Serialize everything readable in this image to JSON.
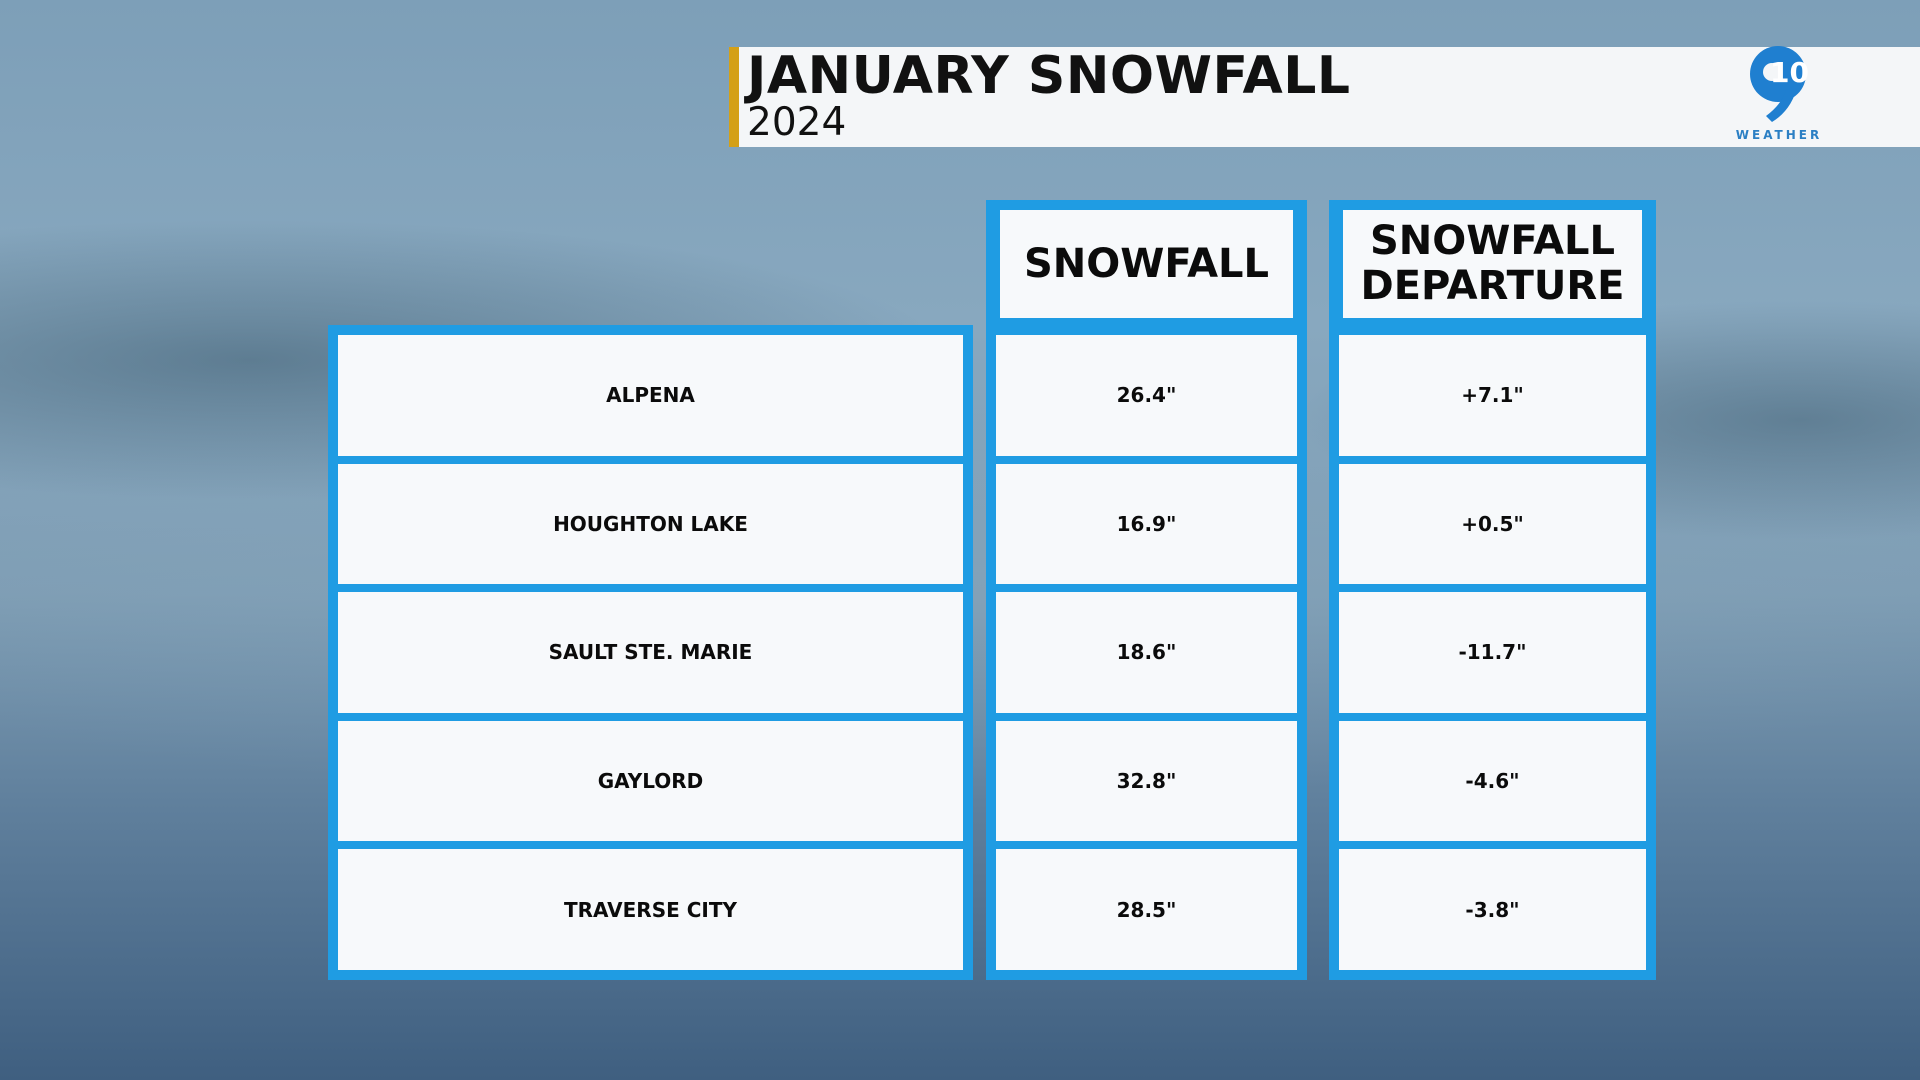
{
  "header": {
    "title": "JANUARY SNOWFALL",
    "subtitle": "2024"
  },
  "logo": {
    "number": "10",
    "caption": "WEATHER"
  },
  "table": {
    "columns": [
      "SNOWFALL",
      "SNOWFALL DEPARTURE"
    ],
    "rows": [
      [
        "ALPENA",
        "26.4\"",
        "+7.1\""
      ],
      [
        "HOUGHTON LAKE",
        "16.9\"",
        "+0.5\""
      ],
      [
        "SAULT STE. MARIE",
        "18.6\"",
        "-11.7\""
      ],
      [
        "GAYLORD",
        "32.8\"",
        "-4.6\""
      ],
      [
        "TRAVERSE CITY",
        "28.5\"",
        "-3.8\""
      ]
    ]
  }
}
